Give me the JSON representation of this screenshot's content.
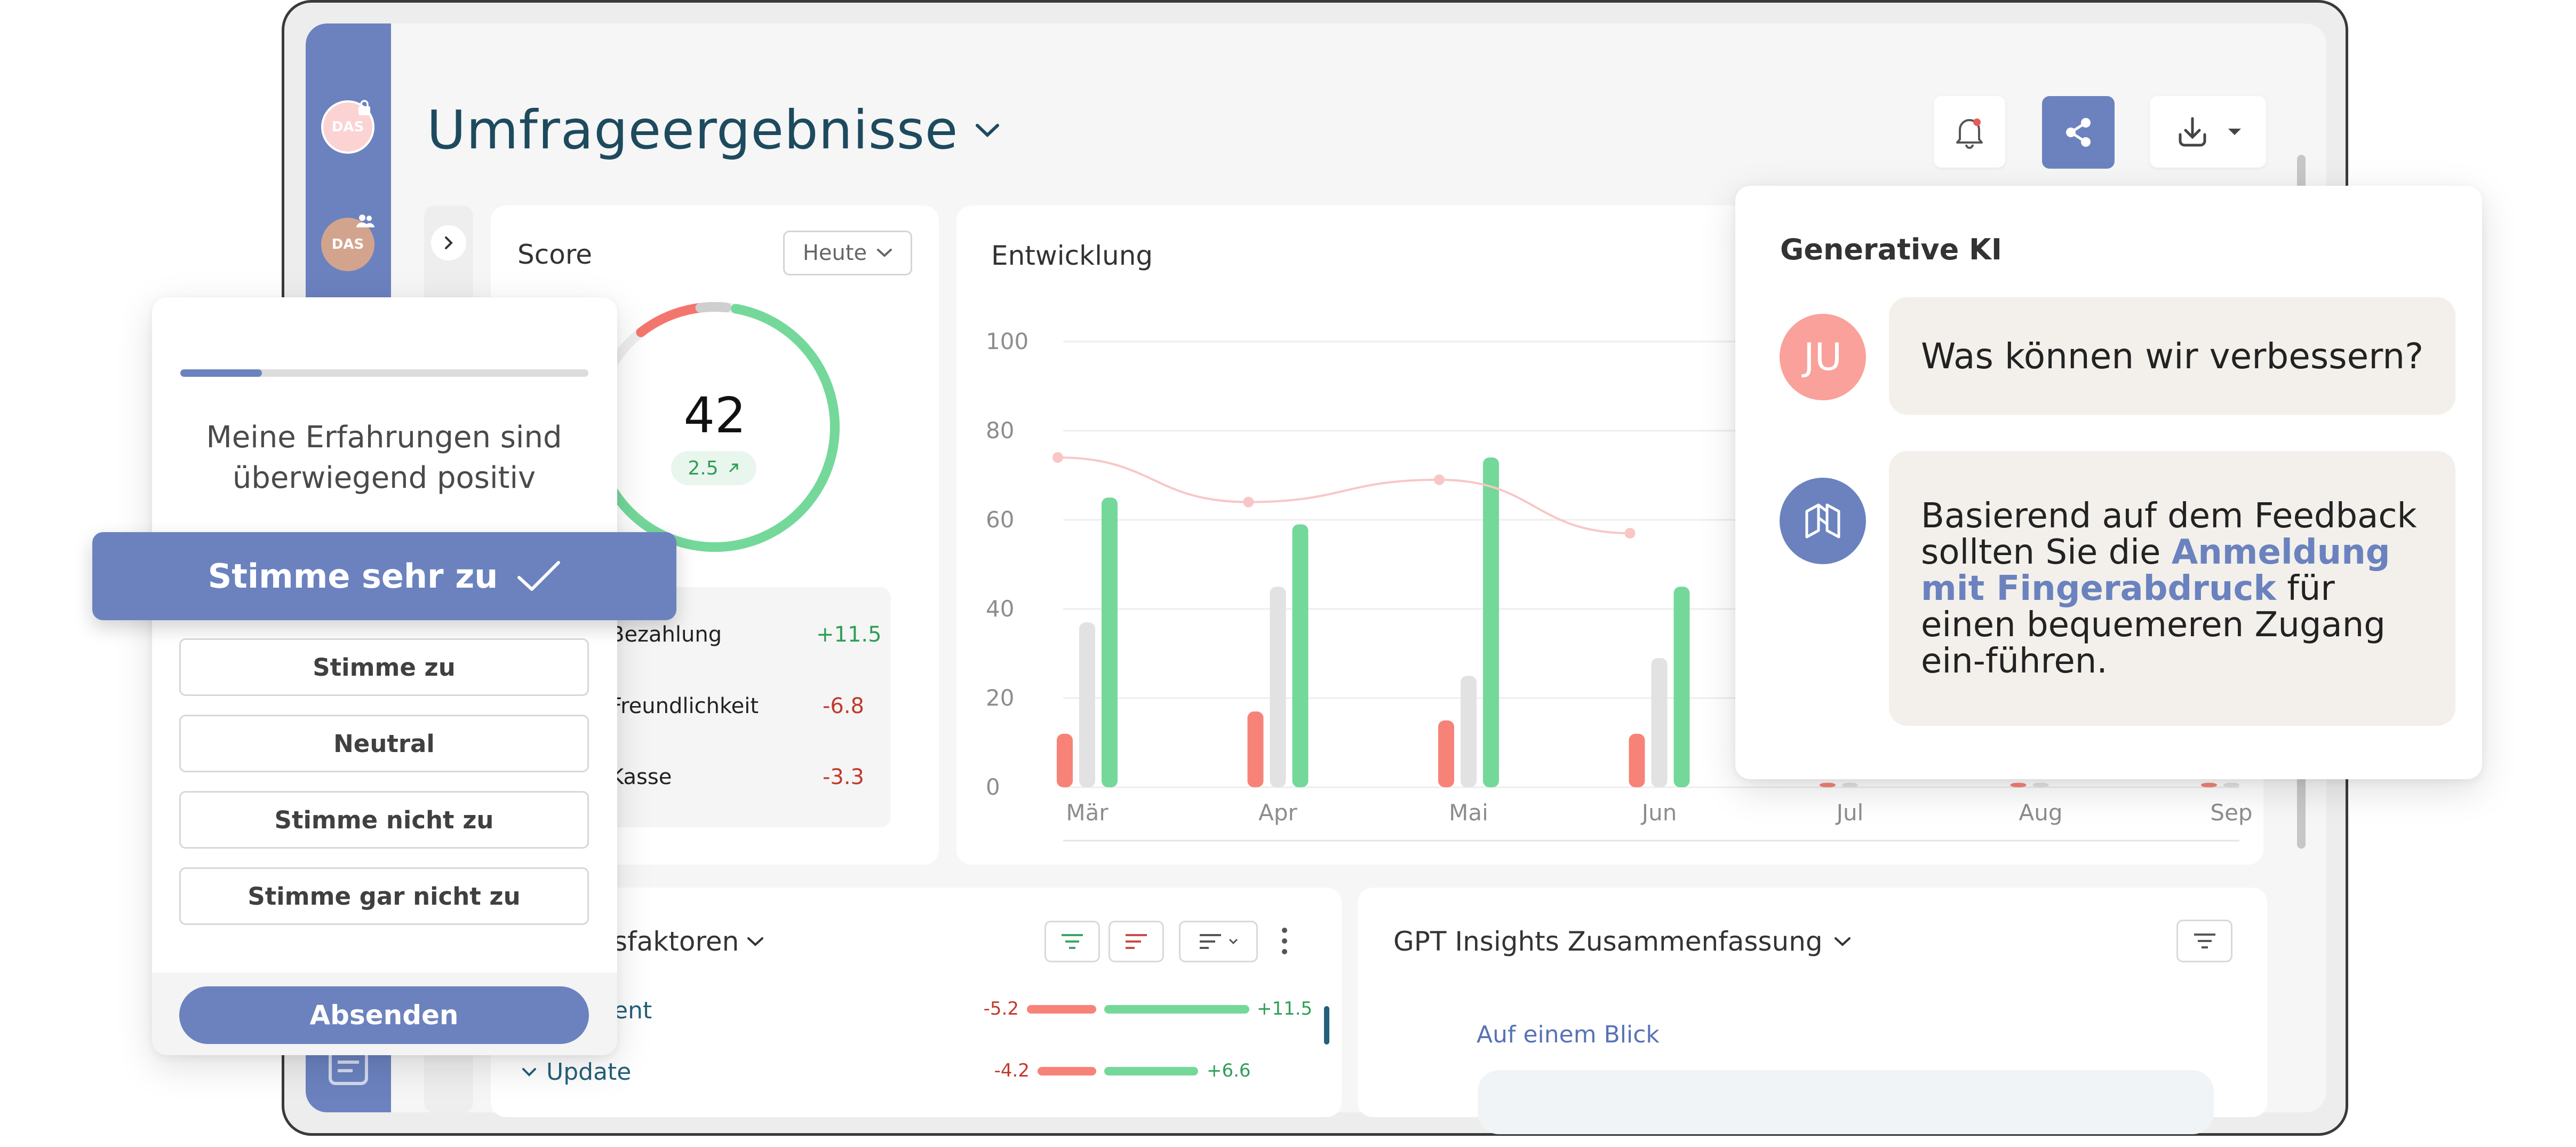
{
  "header": {
    "title": "Umfrageergebnisse",
    "actions": [
      "bell-icon",
      "share-icon",
      "download-icon",
      "caret-down-icon"
    ]
  },
  "sidebar": {
    "avatars": [
      {
        "initials": "DAS",
        "badge": "lock-icon"
      },
      {
        "initials": "DAS",
        "badge": "users-icon"
      }
    ]
  },
  "score": {
    "title": "Score",
    "period": "Heute",
    "value": "42",
    "delta": "2.5",
    "ring": {
      "red_fraction": 0.12,
      "green_fraction": 0.78
    },
    "drivers": [
      {
        "label": "Bezahlung",
        "value": "+11.5"
      },
      {
        "label": "Freundlichkeit",
        "value": "-6.8"
      },
      {
        "label": "Kasse",
        "value": "-3.3"
      }
    ]
  },
  "chart_data": {
    "type": "bar",
    "title": "Entwicklung",
    "categories": [
      "Mär",
      "Apr",
      "Mai",
      "Jun",
      "Jul",
      "Aug",
      "Sep"
    ],
    "series": [
      {
        "color": "#f78378",
        "values": [
          12,
          17,
          15,
          12,
          1,
          1,
          1
        ]
      },
      {
        "color": "#e2e2e2",
        "values": [
          37,
          45,
          25,
          29,
          1,
          1,
          1
        ]
      },
      {
        "color": "#74d89a",
        "values": [
          65,
          59,
          74,
          45,
          null,
          null,
          null
        ]
      }
    ],
    "trend": {
      "color": "#f9c6c6",
      "values": [
        74,
        64,
        69,
        57
      ]
    },
    "ylim": [
      0,
      100
    ],
    "yticks": [
      0,
      20,
      40,
      60,
      80,
      100
    ],
    "grid": true
  },
  "survey": {
    "progress": 0.2,
    "question": [
      "Meine Erfahrungen sind",
      "überwiegend positiv"
    ],
    "selected": "Stimme sehr zu",
    "options": [
      "Stimme zu",
      "Neutral",
      "Stimme nicht zu",
      "Stimme gar nicht zu"
    ],
    "submit": "Absenden"
  },
  "ai": {
    "title": "Generative KI",
    "user_initials": "JU",
    "question": "Was können wir verbessern?",
    "answer_before": "Basierend auf dem Feedback sollten Sie die ",
    "answer_link": "Anmeldung mit Fingerabdruck",
    "answer_after": " für einen bequemeren Zugang ein-führen."
  },
  "drivers_panel": {
    "title_visible": "sfaktoren",
    "rows": [
      {
        "label": "ent",
        "neg": "-5.2",
        "pos": "+11.5",
        "neg_value": 5.2,
        "pos_value": 11.5
      },
      {
        "label": "Update",
        "neg": "-4.2",
        "pos": "+6.6",
        "neg_value": 4.2,
        "pos_value": 6.6
      }
    ]
  },
  "gpt": {
    "title": "GPT Insights Zusammenfassung",
    "subtitle": "Auf einem Blick"
  },
  "colors": {
    "brand": "#6b82bf",
    "title": "#1d4a5e",
    "positive": "#2f9e55",
    "negative": "#c0392b",
    "link": "#6b82bf"
  }
}
